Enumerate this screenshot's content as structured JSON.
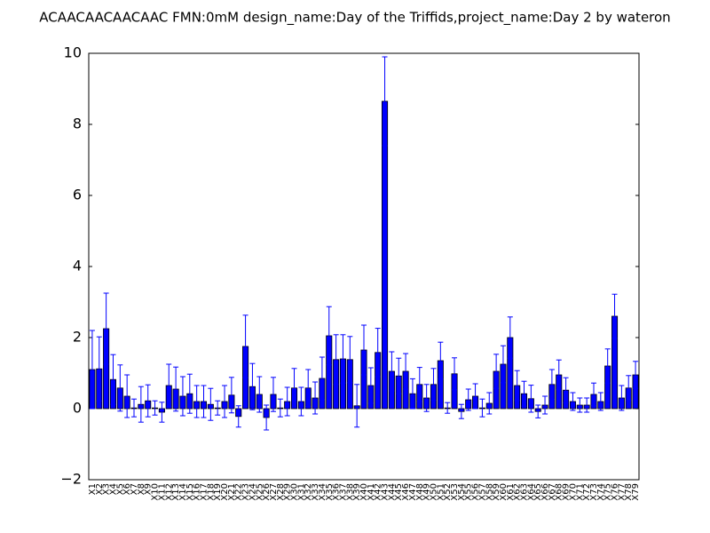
{
  "chart_data": {
    "type": "bar",
    "title": "ACAACAACAACAAC  FMN:0mM  design_name:Day of the Triffids,project_name:Day 2 by wateron",
    "categories": [
      "X1",
      "X2",
      "X3",
      "X4",
      "X5",
      "X6",
      "X7",
      "X8",
      "X9",
      "X10",
      "X11",
      "X12",
      "X13",
      "X14",
      "X15",
      "X16",
      "X17",
      "X18",
      "X19",
      "X20",
      "X21",
      "X22",
      "X23",
      "X24",
      "X25",
      "X26",
      "X27",
      "X28",
      "X29",
      "X30",
      "X31",
      "X32",
      "X33",
      "X34",
      "X35",
      "X36",
      "X37",
      "X38",
      "X39",
      "X40",
      "X41",
      "X42",
      "X43",
      "X44",
      "X45",
      "X46",
      "X47",
      "X48",
      "X49",
      "X50",
      "X51",
      "X52",
      "X53",
      "X54",
      "X55",
      "X56",
      "X57",
      "X58",
      "X59",
      "X60",
      "X61",
      "X62",
      "X63",
      "X64",
      "X65",
      "X66",
      "X67",
      "X68",
      "X69",
      "X70",
      "X71",
      "X72",
      "X73",
      "X74",
      "X75",
      "X76",
      "X77",
      "X78",
      "X79"
    ],
    "values": [
      1.1,
      1.12,
      2.25,
      0.82,
      0.58,
      0.35,
      0.02,
      0.12,
      0.22,
      0.02,
      -0.1,
      0.65,
      0.55,
      0.35,
      0.42,
      0.2,
      0.2,
      0.12,
      0.02,
      0.2,
      0.38,
      -0.22,
      1.75,
      0.62,
      0.4,
      -0.25,
      0.4,
      0.02,
      0.2,
      0.58,
      0.2,
      0.58,
      0.3,
      0.85,
      2.05,
      1.38,
      1.4,
      1.38,
      0.08,
      1.65,
      0.65,
      1.58,
      8.65,
      1.05,
      0.92,
      1.05,
      0.42,
      0.68,
      0.3,
      0.68,
      1.35,
      0.02,
      0.98,
      -0.08,
      0.25,
      0.35,
      0.02,
      0.15,
      1.05,
      1.25,
      2.0,
      0.65,
      0.42,
      0.28,
      -0.08,
      0.1,
      0.68,
      0.95,
      0.52,
      0.2,
      0.1,
      0.1,
      0.4,
      0.2,
      1.2,
      2.6,
      0.3,
      0.58,
      0.95
    ],
    "errors": [
      1.1,
      0.9,
      1.0,
      0.7,
      0.65,
      0.6,
      0.25,
      0.5,
      0.45,
      0.2,
      0.28,
      0.6,
      0.62,
      0.55,
      0.55,
      0.45,
      0.45,
      0.45,
      0.2,
      0.45,
      0.5,
      0.3,
      0.88,
      0.65,
      0.5,
      0.35,
      0.48,
      0.25,
      0.4,
      0.55,
      0.4,
      0.52,
      0.45,
      0.6,
      0.82,
      0.7,
      0.68,
      0.65,
      0.6,
      0.7,
      0.5,
      0.68,
      1.25,
      0.55,
      0.5,
      0.5,
      0.42,
      0.48,
      0.38,
      0.45,
      0.52,
      0.15,
      0.45,
      0.2,
      0.3,
      0.35,
      0.25,
      0.3,
      0.48,
      0.52,
      0.58,
      0.42,
      0.35,
      0.38,
      0.18,
      0.25,
      0.42,
      0.42,
      0.35,
      0.25,
      0.2,
      0.2,
      0.32,
      0.25,
      0.48,
      0.62,
      0.35,
      0.35,
      0.38
    ],
    "color": "#0000ff",
    "error_color": "#0000ff",
    "ylim": [
      -2,
      10
    ],
    "yticks": [
      {
        "value": -2,
        "label": "−2"
      },
      0,
      2,
      4,
      6,
      8,
      10
    ]
  }
}
